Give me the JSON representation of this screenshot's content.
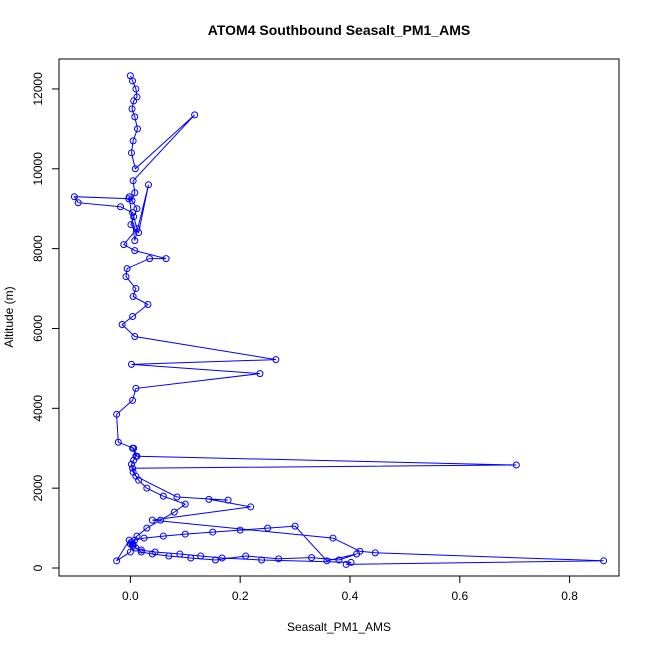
{
  "chart_data": {
    "type": "line",
    "title": "ATOM4 Southbound Seasalt_PM1_AMS",
    "xlabel": "Seasalt_PM1_AMS",
    "ylabel": "Altitude (m)",
    "xlim": [
      -0.13,
      0.89
    ],
    "ylim": [
      -200,
      12750
    ],
    "x_ticks": [
      0.0,
      0.2,
      0.4,
      0.6,
      0.8
    ],
    "x_tick_labels": [
      "0.0",
      "0.2",
      "0.4",
      "0.6",
      "0.8"
    ],
    "y_ticks": [
      0,
      2000,
      4000,
      6000,
      8000,
      10000,
      12000
    ],
    "y_tick_labels": [
      "0",
      "2000",
      "4000",
      "6000",
      "8000",
      "10000",
      "12000"
    ],
    "grid": false,
    "series": [
      {
        "color": "#0000ff",
        "marker": "open-circle",
        "x": [
          0.0,
          0.004,
          0.01,
          0.012,
          0.006,
          0.003,
          0.008,
          0.013,
          0.005,
          0.002,
          0.009,
          0.117,
          0.005,
          0.008,
          0.003,
          0.012,
          0.006,
          0.001,
          0.015,
          0.033,
          0.008,
          -0.002,
          -0.003,
          -0.102,
          -0.095,
          -0.018,
          0.004,
          0.012,
          -0.012,
          0.008,
          0.065,
          0.035,
          -0.006,
          -0.008,
          0.01,
          0.005,
          0.032,
          0.004,
          -0.015,
          0.008,
          0.265,
          0.002,
          0.236,
          0.01,
          0.004,
          -0.025,
          -0.022,
          0.006,
          0.012,
          0.703,
          0.004,
          0.01,
          0.085,
          0.178,
          0.143,
          0.219,
          0.04,
          0.369,
          0.418,
          0.446,
          0.862,
          0.393,
          0.402,
          0.239,
          0.167,
          0.128,
          0.09,
          0.045,
          0.02,
          0.01,
          0.005,
          0.0,
          0.002,
          0.008,
          0.025,
          0.06,
          0.1,
          0.15,
          0.2,
          0.25,
          0.3,
          0.358,
          0.412,
          0.38,
          0.33,
          0.27,
          0.21,
          0.155,
          0.11,
          0.07,
          0.04,
          0.02,
          0.01,
          0.005,
          -0.002,
          -0.025,
          0.0,
          0.003,
          0.012,
          0.03,
          0.055,
          0.08,
          0.1,
          0.06,
          0.03,
          0.015,
          0.005,
          0.002,
          0.006,
          0.01,
          0.004
        ],
        "y": [
          12330,
          12200,
          12000,
          11800,
          11700,
          11500,
          11300,
          11000,
          10700,
          10400,
          10000,
          11350,
          9700,
          9400,
          9200,
          9000,
          8800,
          8600,
          8400,
          9600,
          8200,
          9300,
          9250,
          9300,
          9150,
          9050,
          8900,
          8500,
          8100,
          7950,
          7750,
          7750,
          7500,
          7300,
          7000,
          6800,
          6600,
          6300,
          6100,
          5800,
          5220,
          5100,
          4870,
          4500,
          4200,
          3850,
          3150,
          3000,
          2800,
          2580,
          2500,
          2300,
          1780,
          1700,
          1720,
          1530,
          1200,
          750,
          420,
          380,
          180,
          90,
          140,
          200,
          250,
          300,
          350,
          400,
          450,
          500,
          550,
          600,
          650,
          700,
          750,
          800,
          850,
          900,
          950,
          1000,
          1050,
          180,
          350,
          200,
          260,
          230,
          300,
          200,
          250,
          300,
          350,
          400,
          500,
          600,
          700,
          180,
          400,
          600,
          800,
          1000,
          1200,
          1400,
          1600,
          1800,
          2000,
          2200,
          2400,
          2600,
          2700,
          2800,
          3000
        ]
      }
    ]
  }
}
